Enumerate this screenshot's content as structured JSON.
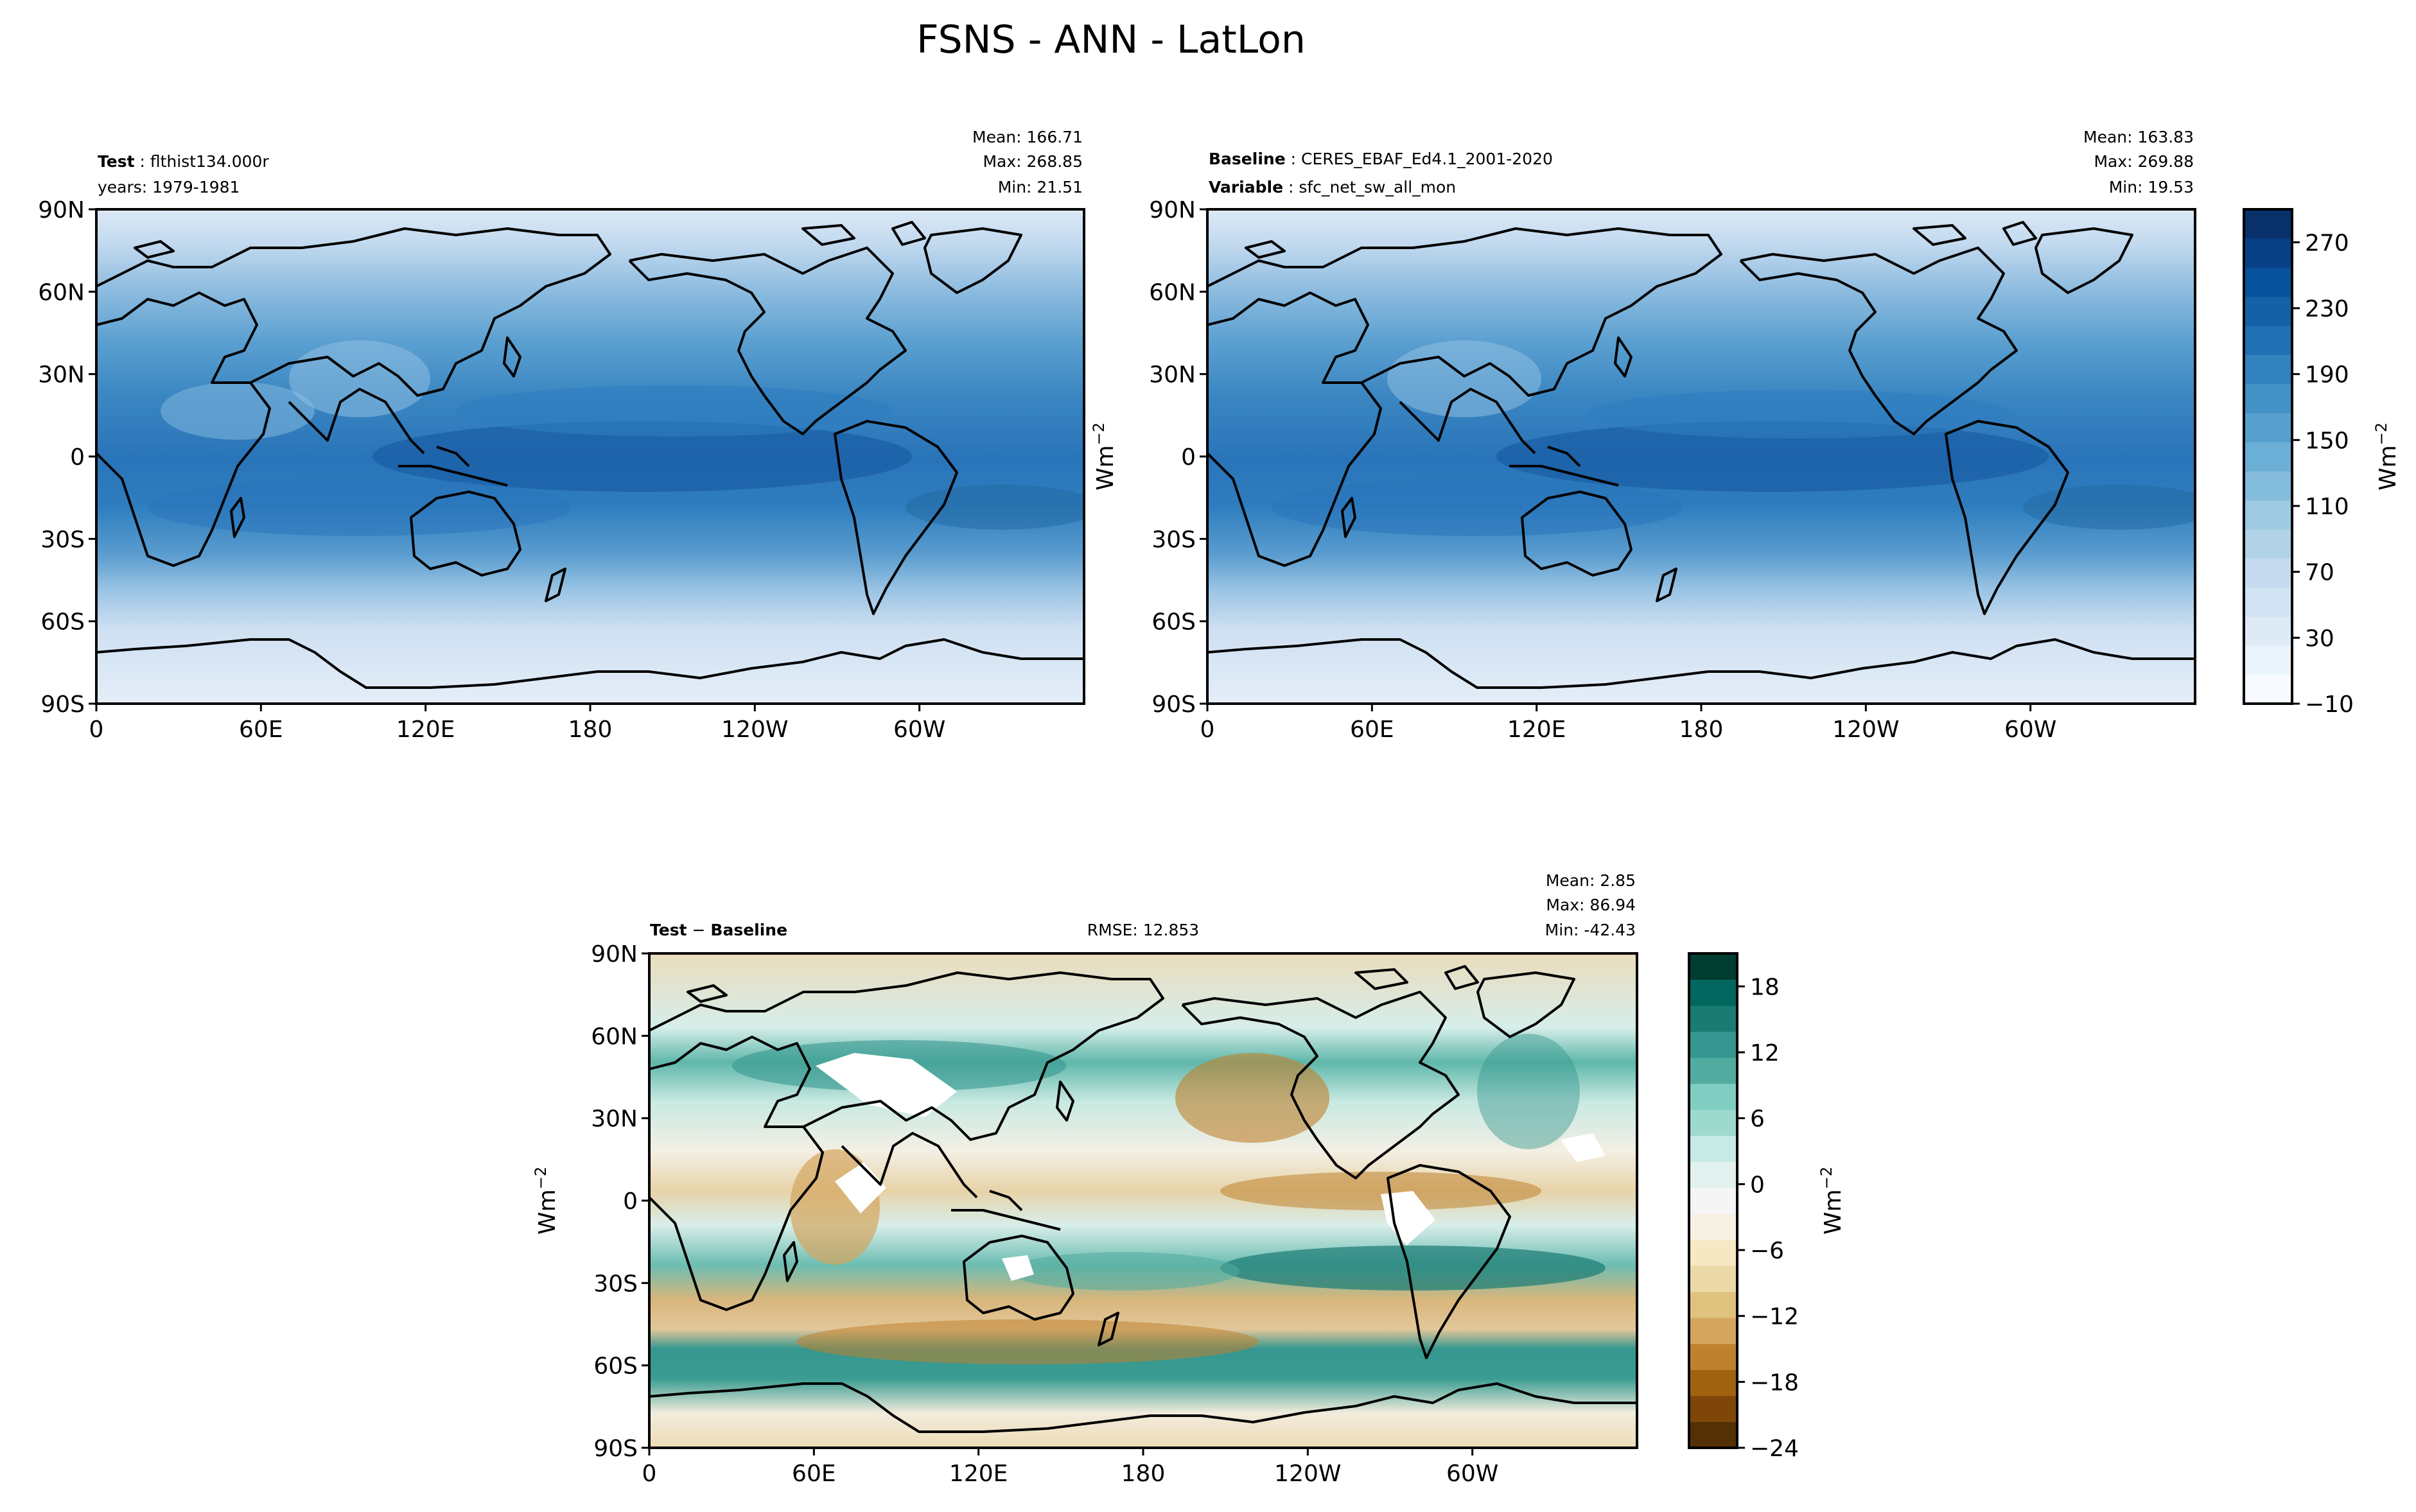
{
  "figure": {
    "title": "FSNS - ANN - LatLon"
  },
  "panels": {
    "test": {
      "label_bold": "Test",
      "label_value": "flthist134.000r",
      "subtitle": "years: 1979-1981",
      "mean_text": "Mean: 166.71",
      "max_text": "Max: 268.85",
      "min_text": "Min: 21.51",
      "ylabel": ""
    },
    "baseline": {
      "label_bold": "Baseline",
      "label_value": "CERES_EBAF_Ed4.1_2001-2020",
      "var_bold": "Variable",
      "var_value": "sfc_net_sw_all_mon",
      "mean_text": "Mean: 163.83",
      "max_text": "Max: 269.88",
      "min_text": "Min: 19.53",
      "ylabel": "Wm"
    },
    "diff": {
      "label_bold": "Test",
      "label_minus": "−",
      "label_bold2": "Baseline",
      "rmse_text": "RMSE: 12.853",
      "mean_text": "Mean:  2.85",
      "max_text": "Max: 86.94",
      "min_text": "Min: -42.43",
      "ylabel": "Wm"
    }
  },
  "axes": {
    "lat_ticks": [
      "90N",
      "60N",
      "30N",
      "0",
      "30S",
      "60S",
      "90S"
    ],
    "lon_ticks": [
      "0",
      "60E",
      "120E",
      "180",
      "120W",
      "60W"
    ]
  },
  "colorbars": {
    "main": {
      "label": "Wm",
      "unit_exp": "−2",
      "ticks": [
        "270",
        "230",
        "190",
        "150",
        "110",
        "70",
        "30",
        "−10"
      ],
      "levels": [
        -10,
        290
      ],
      "colors": [
        "#f7fbff",
        "#ebf3fb",
        "#deebf7",
        "#d1e3f3",
        "#c6dbef",
        "#b1d2e7",
        "#9ecae1",
        "#84bcdb",
        "#6baed6",
        "#57a0ce",
        "#4292c6",
        "#3282be",
        "#2171b5",
        "#1461a8",
        "#08519c",
        "#084085",
        "#08306b"
      ]
    },
    "diff": {
      "label": "Wm",
      "unit_exp": "−2",
      "ticks": [
        "18",
        "12",
        "6",
        "0",
        "−6",
        "−12",
        "−18",
        "−24"
      ],
      "levels": [
        -24,
        21
      ],
      "colors": [
        "#543005",
        "#7f4609",
        "#a0620f",
        "#bf812d",
        "#d4a55e",
        "#dfc27d",
        "#ecd9a8",
        "#f6e8c3",
        "#f7f1e4",
        "#f5f5f5",
        "#e3f1ef",
        "#c7eae5",
        "#9ed9ce",
        "#80cdc1",
        "#52ab9f",
        "#35978f",
        "#1a7b73",
        "#01665e",
        "#003c30"
      ]
    }
  }
}
